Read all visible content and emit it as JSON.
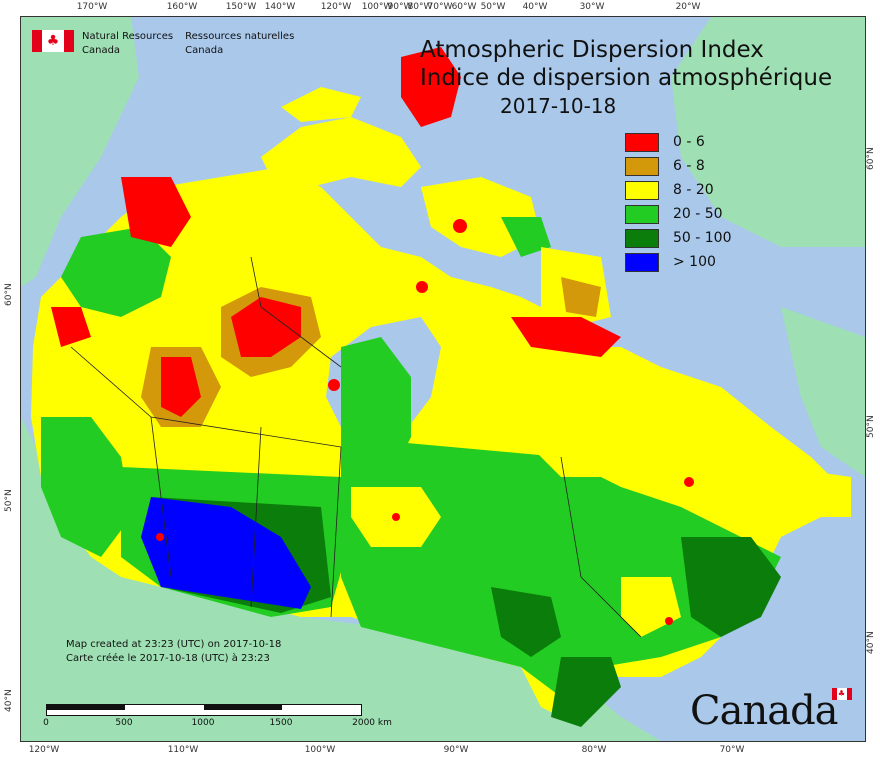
{
  "map": {
    "title_en": "Atmospheric Dispersion Index",
    "title_fr": "Indice de dispersion atmosphérique",
    "date": "2017-10-18",
    "legend": [
      {
        "label": "0 - 6",
        "color": "#ff0000"
      },
      {
        "label": "6 - 8",
        "color": "#d4990b"
      },
      {
        "label": "8 - 20",
        "color": "#ffff00"
      },
      {
        "label": "20 - 50",
        "color": "#22cc22"
      },
      {
        "label": "50 - 100",
        "color": "#0a7d0a"
      },
      {
        "label": "> 100",
        "color": "#0000ff"
      }
    ],
    "agency": {
      "en_line1": "Natural Resources",
      "en_line2": "Canada",
      "fr_line1": "Ressources naturelles",
      "fr_line2": "Canada"
    },
    "created_en": "Map created at 23:23 (UTC) on 2017-10-18",
    "created_fr": "Carte créée le 2017-10-18 (UTC) à 23:23",
    "scale": {
      "labels": [
        "0",
        "500",
        "1000",
        "1500",
        "2000 km"
      ]
    },
    "wordmark": "Canada",
    "ticks_top": [
      "170°W",
      "160°W",
      "150°W",
      "140°W",
      "120°W",
      "100°W",
      "90°W",
      "80°W",
      "70°W",
      "60°W",
      "50°W",
      "40°W",
      "30°W",
      "20°W"
    ],
    "ticks_bottom": [
      "120°W",
      "110°W",
      "100°W",
      "90°W",
      "80°W",
      "70°W"
    ],
    "ticks_left": [
      "60°N",
      "50°N",
      "40°N"
    ],
    "ticks_right": [
      "60°N",
      "50°N",
      "40°N"
    ],
    "colors": {
      "water": "#a9c8ea",
      "land_outside": "#9ee0b4",
      "red": "#ff0000",
      "orange": "#d4990b",
      "yellow": "#ffff00",
      "green": "#22cc22",
      "darkgreen": "#0a7d0a",
      "blue": "#0000ff"
    }
  }
}
